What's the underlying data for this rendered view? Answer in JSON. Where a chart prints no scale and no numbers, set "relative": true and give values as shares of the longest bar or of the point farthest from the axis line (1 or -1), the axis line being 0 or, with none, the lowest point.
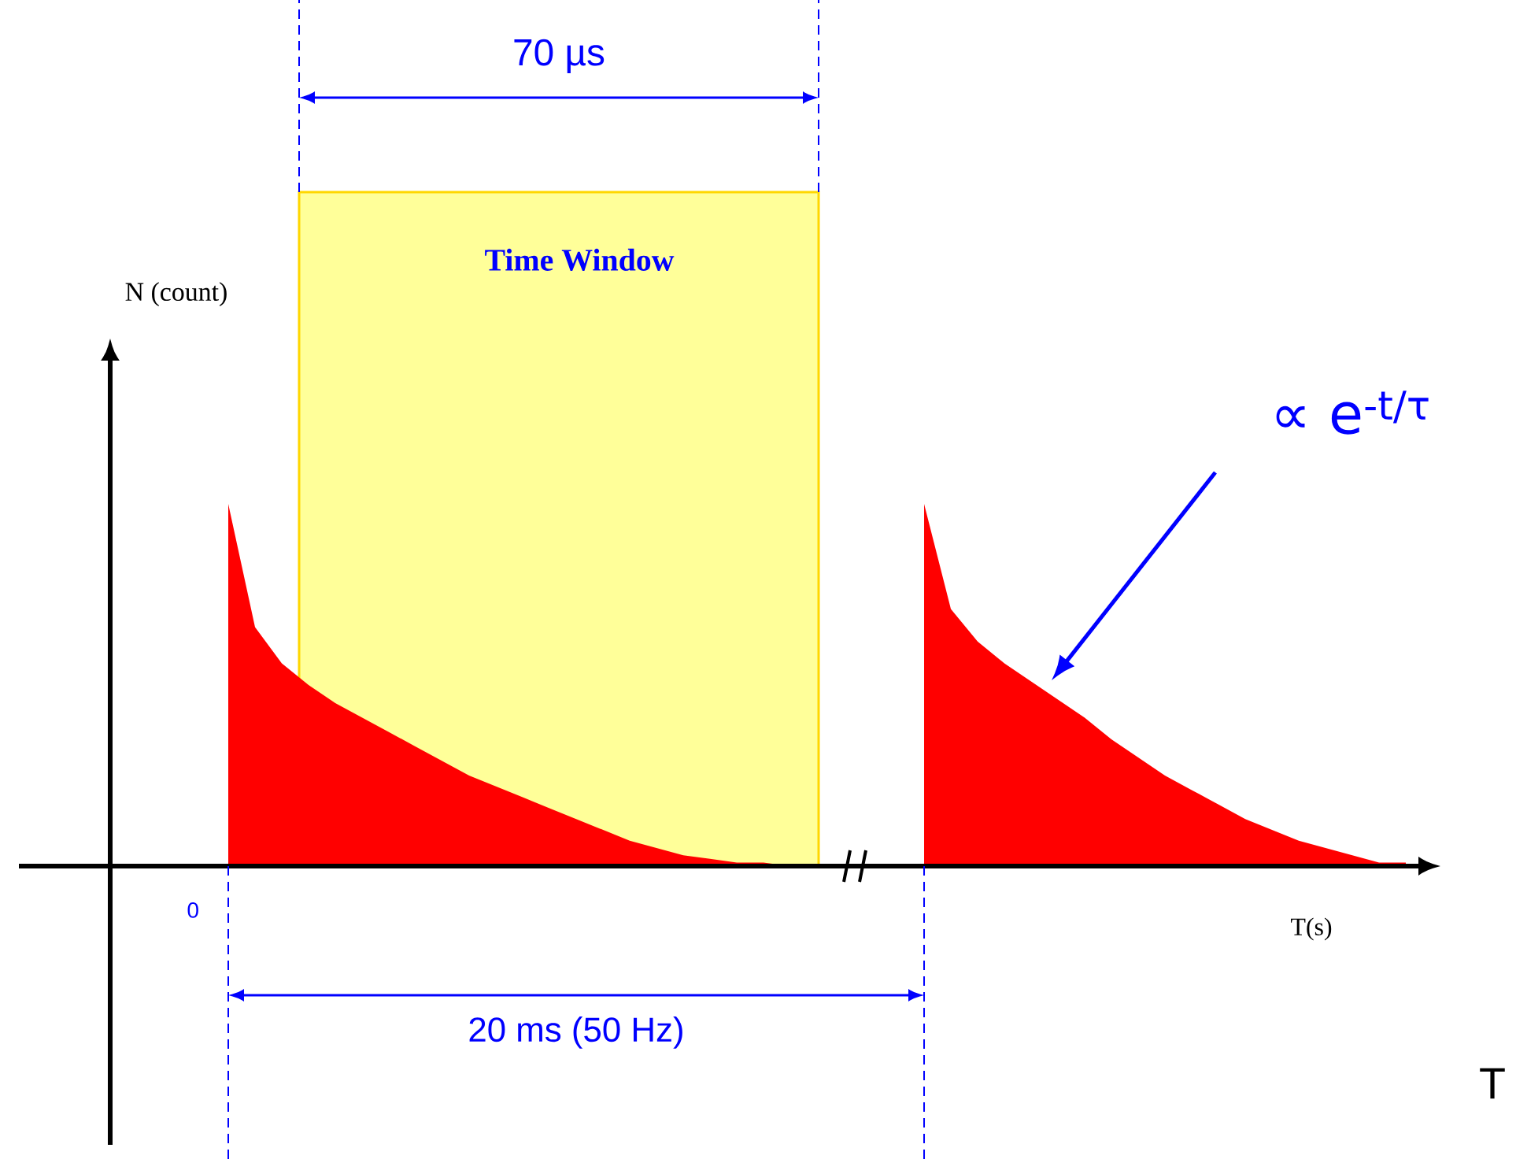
{
  "chart_data": {
    "type": "area",
    "relative": true,
    "xlabel": "T(s)",
    "categories": [
      null,
      null,
      null,
      null,
      null,
      null,
      null,
      null,
      null,
      null,
      null,
      null,
      null,
      null,
      null,
      null,
      null,
      null,
      null,
      null,
      null,
      null,
      null,
      null,
      null,
      null,
      null,
      null,
      null,
      null,
      null,
      null,
      null,
      null,
      null,
      null,
      null,
      null,
      null,
      null,
      null,
      null,
      null,
      null,
      null
    ],
    "series": [
      {
        "color": "#ff0000",
        "values": [
          1.0,
          0.66,
          0.56,
          0.5,
          0.45,
          0.41,
          0.37,
          0.33,
          0.29,
          0.25,
          0.22,
          0.19,
          0.16,
          0.13,
          0.1,
          0.07,
          0.05,
          0.03,
          0.02,
          0.01,
          0.01,
          0.0,
          0.0,
          null,
          null,
          null,
          null,
          null,
          null,
          null,
          null,
          null,
          null,
          null,
          null,
          null,
          null,
          null,
          null,
          null,
          null,
          null,
          null,
          null,
          null
        ]
      },
      {
        "color": "#ff0000",
        "values": [
          null,
          null,
          null,
          null,
          null,
          null,
          null,
          null,
          null,
          null,
          null,
          null,
          null,
          null,
          null,
          null,
          null,
          null,
          null,
          null,
          null,
          null,
          null,
          null,
          null,
          null,
          1.0,
          0.71,
          0.62,
          0.56,
          0.51,
          0.46,
          0.41,
          0.35,
          0.3,
          0.25,
          0.21,
          0.17,
          0.13,
          0.1,
          0.07,
          0.05,
          0.03,
          0.01,
          0.01
        ]
      }
    ],
    "annotations": [
      "70 µs",
      "Time Window",
      "0",
      "20 ms (50 Hz)",
      "∝ e$^{-t/τ}$",
      "T",
      "N (count)"
    ]
  }
}
